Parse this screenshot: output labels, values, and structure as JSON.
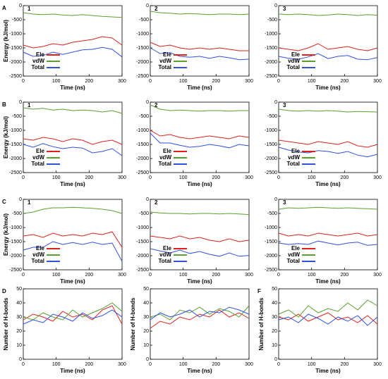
{
  "chart_data": [
    {
      "type": "line",
      "panel": "A",
      "number": "1",
      "xlabel": "Time (ns)",
      "ylabel": "Energy (kJ/mol)",
      "x": [
        0,
        30,
        60,
        90,
        120,
        150,
        180,
        210,
        240,
        270,
        300
      ],
      "xlim": [
        0,
        300
      ],
      "xticks": [
        0,
        100,
        200,
        300
      ],
      "ylim": [
        -2500,
        0
      ],
      "yticks": [
        0,
        -500,
        -1000,
        -1500,
        -2000,
        -2500
      ],
      "legend": "lower left",
      "series": [
        {
          "name": "Ele",
          "color": "#e0201b",
          "values": [
            -1400,
            -1500,
            -1450,
            -1350,
            -1400,
            -1300,
            -1250,
            -1200,
            -1100,
            -1150,
            -1400
          ]
        },
        {
          "name": "vdW",
          "color": "#5aa02c",
          "values": [
            -250,
            -300,
            -320,
            -300,
            -330,
            -350,
            -320,
            -350,
            -380,
            -400,
            -420
          ]
        },
        {
          "name": "Total",
          "color": "#3050e0",
          "values": [
            -1650,
            -1800,
            -1770,
            -1650,
            -1730,
            -1650,
            -1570,
            -1550,
            -1480,
            -1550,
            -1820
          ]
        }
      ]
    },
    {
      "type": "line",
      "number": "2",
      "xlabel": "Time (ns)",
      "x": [
        0,
        30,
        60,
        90,
        120,
        150,
        180,
        210,
        240,
        270,
        300
      ],
      "xlim": [
        0,
        300
      ],
      "xticks": [
        0,
        100,
        200,
        300
      ],
      "ylim": [
        -2500,
        0
      ],
      "yticks": [
        0,
        -500,
        -1000,
        -1500,
        -2000,
        -2500
      ],
      "legend": "lower left",
      "series": [
        {
          "name": "Ele",
          "color": "#e0201b",
          "values": [
            -1300,
            -1450,
            -1400,
            -1500,
            -1550,
            -1500,
            -1550,
            -1500,
            -1550,
            -1600,
            -1600
          ]
        },
        {
          "name": "vdW",
          "color": "#5aa02c",
          "values": [
            -200,
            -250,
            -270,
            -300,
            -280,
            -300,
            -320,
            -300,
            -300,
            -320,
            -300
          ]
        },
        {
          "name": "Total",
          "color": "#3050e0",
          "values": [
            -1500,
            -1700,
            -1670,
            -1800,
            -1830,
            -1800,
            -1870,
            -1800,
            -1850,
            -1920,
            -1900
          ]
        }
      ]
    },
    {
      "type": "line",
      "number": "3",
      "xlabel": "Time (ns)",
      "x": [
        0,
        30,
        60,
        90,
        120,
        150,
        180,
        210,
        240,
        270,
        300
      ],
      "xlim": [
        0,
        300
      ],
      "xticks": [
        0,
        100,
        200,
        300
      ],
      "ylim": [
        -2500,
        0
      ],
      "yticks": [
        0,
        -500,
        -1000,
        -1500,
        -2000,
        -2500
      ],
      "legend": "lower left",
      "series": [
        {
          "name": "Ele",
          "color": "#e0201b",
          "values": [
            -1500,
            -1550,
            -1600,
            -1500,
            -1350,
            -1550,
            -1500,
            -1450,
            -1550,
            -1600,
            -1500
          ]
        },
        {
          "name": "vdW",
          "color": "#5aa02c",
          "values": [
            -300,
            -320,
            -300,
            -320,
            -350,
            -330,
            -300,
            -320,
            -350,
            -320,
            -340
          ]
        },
        {
          "name": "Total",
          "color": "#3050e0",
          "values": [
            -1800,
            -1870,
            -1900,
            -1820,
            -1700,
            -1880,
            -1800,
            -1770,
            -1900,
            -1920,
            -1840
          ]
        }
      ]
    },
    {
      "type": "line",
      "panel": "B",
      "number": "1",
      "xlabel": "Time (ns)",
      "ylabel": "Energy (kJ/mol)",
      "x": [
        0,
        30,
        60,
        90,
        120,
        150,
        180,
        210,
        240,
        270,
        300
      ],
      "xlim": [
        0,
        300
      ],
      "xticks": [
        0,
        100,
        200,
        300
      ],
      "ylim": [
        -2500,
        0
      ],
      "yticks": [
        0,
        -500,
        -1000,
        -1500,
        -2000,
        -2500
      ],
      "legend": "lower left",
      "series": [
        {
          "name": "Ele",
          "color": "#e0201b",
          "values": [
            -1300,
            -1350,
            -1250,
            -1300,
            -1400,
            -1300,
            -1350,
            -1500,
            -1400,
            -1350,
            -1500
          ]
        },
        {
          "name": "vdW",
          "color": "#5aa02c",
          "values": [
            -200,
            -250,
            -220,
            -280,
            -250,
            -300,
            -280,
            -300,
            -350,
            -300,
            -400
          ]
        },
        {
          "name": "Total",
          "color": "#3050e0",
          "values": [
            -1500,
            -1600,
            -1470,
            -1580,
            -1650,
            -1600,
            -1630,
            -1800,
            -1750,
            -1650,
            -1900
          ]
        }
      ]
    },
    {
      "type": "line",
      "number": "2",
      "xlabel": "Time (ns)",
      "x": [
        0,
        30,
        60,
        90,
        120,
        150,
        180,
        210,
        240,
        270,
        300
      ],
      "xlim": [
        0,
        300
      ],
      "xticks": [
        0,
        100,
        200,
        300
      ],
      "ylim": [
        -2500,
        0
      ],
      "yticks": [
        0,
        -500,
        -1000,
        -1500,
        -2000,
        -2500
      ],
      "legend": "lower left",
      "series": [
        {
          "name": "Ele",
          "color": "#e0201b",
          "values": [
            -1000,
            -1200,
            -1150,
            -1250,
            -1300,
            -1250,
            -1200,
            -1250,
            -1300,
            -1200,
            -1250
          ]
        },
        {
          "name": "vdW",
          "color": "#5aa02c",
          "values": [
            -100,
            -250,
            -300,
            -280,
            -300,
            -320,
            -300,
            -300,
            -320,
            -300,
            -300
          ]
        },
        {
          "name": "Total",
          "color": "#3050e0",
          "values": [
            -1100,
            -1450,
            -1450,
            -1530,
            -1600,
            -1570,
            -1500,
            -1550,
            -1620,
            -1500,
            -1550
          ]
        }
      ]
    },
    {
      "type": "line",
      "number": "3",
      "xlabel": "Time (ns)",
      "x": [
        0,
        30,
        60,
        90,
        120,
        150,
        180,
        210,
        240,
        270,
        300
      ],
      "xlim": [
        0,
        300
      ],
      "xticks": [
        0,
        100,
        200,
        300
      ],
      "ylim": [
        -2500,
        0
      ],
      "yticks": [
        0,
        -500,
        -1000,
        -1500,
        -2000,
        -2500
      ],
      "legend": "lower left",
      "series": [
        {
          "name": "Ele",
          "color": "#e0201b",
          "values": [
            -1350,
            -1400,
            -1450,
            -1500,
            -1400,
            -1450,
            -1500,
            -1400,
            -1550,
            -1600,
            -1500
          ]
        },
        {
          "name": "vdW",
          "color": "#5aa02c",
          "values": [
            -250,
            -300,
            -320,
            -300,
            -320,
            -300,
            -320,
            -350,
            -330,
            -340,
            -350
          ]
        },
        {
          "name": "Total",
          "color": "#3050e0",
          "values": [
            -1600,
            -1700,
            -1770,
            -1800,
            -1720,
            -1750,
            -1820,
            -1750,
            -1880,
            -1940,
            -1850
          ]
        }
      ]
    },
    {
      "type": "line",
      "panel": "C",
      "number": "1",
      "xlabel": "Time (ns)",
      "ylabel": "Energy (kJ/mol)",
      "x": [
        0,
        30,
        60,
        90,
        120,
        150,
        180,
        210,
        240,
        270,
        300
      ],
      "xlim": [
        0,
        300
      ],
      "xticks": [
        0,
        100,
        200,
        300
      ],
      "ylim": [
        -2500,
        0
      ],
      "yticks": [
        0,
        -500,
        -1000,
        -1500,
        -2000,
        -2500
      ],
      "legend": "lower left",
      "series": [
        {
          "name": "Ele",
          "color": "#e0201b",
          "values": [
            -1300,
            -1250,
            -1350,
            -1200,
            -1300,
            -1250,
            -1300,
            -1200,
            -1250,
            -1150,
            -1700
          ]
        },
        {
          "name": "vdW",
          "color": "#5aa02c",
          "values": [
            -500,
            -450,
            -350,
            -300,
            -300,
            -280,
            -300,
            -320,
            -350,
            -400,
            -500
          ]
        },
        {
          "name": "Total",
          "color": "#3050e0",
          "values": [
            -1800,
            -1700,
            -1700,
            -1500,
            -1600,
            -1530,
            -1600,
            -1520,
            -1600,
            -1550,
            -2200
          ]
        }
      ]
    },
    {
      "type": "line",
      "number": "2",
      "xlabel": "Time (ns)",
      "x": [
        0,
        30,
        60,
        90,
        120,
        150,
        180,
        210,
        240,
        270,
        300
      ],
      "xlim": [
        0,
        300
      ],
      "xticks": [
        0,
        100,
        200,
        300
      ],
      "ylim": [
        -2500,
        0
      ],
      "yticks": [
        0,
        -500,
        -1000,
        -1500,
        -2000,
        -2500
      ],
      "legend": "lower left",
      "series": [
        {
          "name": "Ele",
          "color": "#e0201b",
          "values": [
            -1300,
            -1350,
            -1400,
            -1300,
            -1400,
            -1350,
            -1450,
            -1500,
            -1400,
            -1500,
            -1450
          ]
        },
        {
          "name": "vdW",
          "color": "#5aa02c",
          "values": [
            -450,
            -480,
            -500,
            -500,
            -520,
            -500,
            -500,
            -520,
            -500,
            -520,
            -540
          ]
        },
        {
          "name": "Total",
          "color": "#3050e0",
          "values": [
            -1750,
            -1830,
            -1900,
            -1800,
            -1920,
            -1850,
            -1950,
            -2020,
            -1900,
            -2020,
            -1990
          ]
        }
      ]
    },
    {
      "type": "line",
      "number": "3",
      "xlabel": "Time (ns)",
      "x": [
        0,
        30,
        60,
        90,
        120,
        150,
        180,
        210,
        240,
        270,
        300
      ],
      "xlim": [
        0,
        300
      ],
      "xticks": [
        0,
        100,
        200,
        300
      ],
      "ylim": [
        -2500,
        0
      ],
      "yticks": [
        0,
        -500,
        -1000,
        -1500,
        -2000,
        -2500
      ],
      "legend": "lower left",
      "series": [
        {
          "name": "Ele",
          "color": "#e0201b",
          "values": [
            -1200,
            -1300,
            -1250,
            -1300,
            -1200,
            -1250,
            -1300,
            -1250,
            -1200,
            -1300,
            -1250
          ]
        },
        {
          "name": "vdW",
          "color": "#5aa02c",
          "values": [
            -350,
            -300,
            -320,
            -300,
            -280,
            -300,
            -320,
            -300,
            -320,
            -330,
            -350
          ]
        },
        {
          "name": "Total",
          "color": "#3050e0",
          "values": [
            -1550,
            -1600,
            -1570,
            -1600,
            -1480,
            -1550,
            -1620,
            -1550,
            -1520,
            -1630,
            -1600
          ]
        }
      ]
    },
    {
      "type": "line",
      "panel": "D",
      "xlabel": "Time (ns)",
      "ylabel": "Number of H-bonds",
      "x": [
        0,
        30,
        60,
        90,
        120,
        150,
        180,
        210,
        240,
        270,
        300
      ],
      "xlim": [
        0,
        300
      ],
      "xticks": [
        0,
        100,
        200,
        300
      ],
      "ylim": [
        0,
        50
      ],
      "yticks": [
        0,
        10,
        20,
        30,
        40,
        50
      ],
      "series": [
        {
          "color": "#e0201b",
          "values": [
            28,
            32,
            30,
            27,
            34,
            30,
            32,
            28,
            35,
            38,
            25
          ]
        },
        {
          "color": "#5aa02c",
          "values": [
            30,
            28,
            33,
            30,
            28,
            35,
            30,
            33,
            36,
            40,
            34
          ]
        },
        {
          "color": "#3050e0",
          "values": [
            25,
            28,
            26,
            32,
            30,
            27,
            33,
            29,
            31,
            35,
            30
          ]
        }
      ]
    },
    {
      "type": "line",
      "xlabel": "Time (ns)",
      "ylabel": "Number of H-bonds",
      "x": [
        0,
        30,
        60,
        90,
        120,
        150,
        180,
        210,
        240,
        270,
        300
      ],
      "xlim": [
        0,
        300
      ],
      "xticks": [
        0,
        100,
        200,
        300
      ],
      "ylim": [
        0,
        50
      ],
      "yticks": [
        0,
        10,
        20,
        30,
        40,
        50
      ],
      "series": [
        {
          "color": "#e0201b",
          "values": [
            22,
            27,
            25,
            30,
            28,
            32,
            30,
            35,
            30,
            33,
            29
          ]
        },
        {
          "color": "#5aa02c",
          "values": [
            30,
            32,
            28,
            35,
            33,
            37,
            32,
            36,
            34,
            30,
            38
          ]
        },
        {
          "color": "#3050e0",
          "values": [
            28,
            33,
            30,
            32,
            35,
            30,
            34,
            33,
            37,
            35,
            32
          ]
        }
      ]
    },
    {
      "type": "line",
      "panel": "F",
      "xlabel": "Time (ns)",
      "ylabel": "Number of H-bonds",
      "x": [
        0,
        30,
        60,
        90,
        120,
        150,
        180,
        210,
        240,
        270,
        300
      ],
      "xlim": [
        0,
        300
      ],
      "xticks": [
        0,
        100,
        200,
        300
      ],
      "ylim": [
        0,
        50
      ],
      "yticks": [
        0,
        10,
        20,
        30,
        40,
        50
      ],
      "series": [
        {
          "color": "#e0201b",
          "values": [
            30,
            28,
            32,
            27,
            30,
            33,
            28,
            30,
            26,
            31,
            25
          ]
        },
        {
          "color": "#5aa02c",
          "values": [
            32,
            35,
            30,
            38,
            33,
            36,
            34,
            40,
            35,
            42,
            38
          ]
        },
        {
          "color": "#3050e0",
          "values": [
            28,
            30,
            26,
            32,
            29,
            25,
            30,
            27,
            31,
            24,
            30
          ]
        }
      ]
    }
  ]
}
